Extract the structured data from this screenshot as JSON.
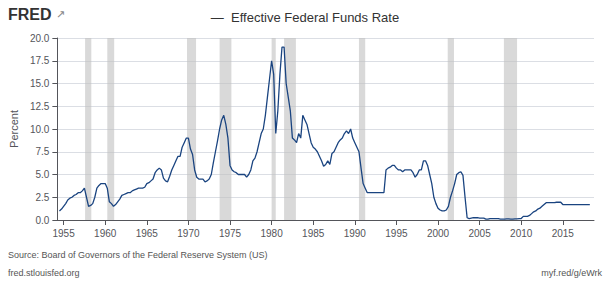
{
  "chart_data": {
    "type": "line",
    "title": "—  Effective Federal Funds Rate",
    "ylabel": "Percent",
    "annotations": [
      "FRED",
      "↗",
      "Source: Board of Governors of the Federal Reserve System (US)",
      "fred.stlouisfed.org",
      "myf.red/g/eWrk"
    ],
    "color": "#1a4480",
    "grid": true,
    "xlim": [
      1954.25,
      2018.75
    ],
    "xticks": [
      1955,
      1960,
      1965,
      1970,
      1975,
      1980,
      1985,
      1990,
      1995,
      2000,
      2005,
      2010,
      2015
    ],
    "ylim": [
      0.0,
      20.0
    ],
    "yticks": [
      {
        "value": 0.0,
        "label": "0.0"
      },
      2.5,
      {
        "value": 5.0,
        "label": "5.0"
      },
      7.5,
      {
        "value": 10.0,
        "label": "10.0"
      },
      12.5,
      {
        "value": 15.0,
        "label": "15.0"
      },
      17.5,
      {
        "value": 20.0,
        "label": "20.0"
      }
    ],
    "recession_bands": [
      [
        1957.58,
        1958.33
      ],
      [
        1960.25,
        1961.08
      ],
      [
        1969.83,
        1970.92
      ],
      [
        1973.75,
        1975.17
      ],
      [
        1980.0,
        1980.5
      ],
      [
        1981.5,
        1982.92
      ],
      [
        1990.5,
        1991.25
      ],
      [
        2001.17,
        2001.92
      ],
      [
        2007.92,
        2009.5
      ]
    ],
    "x": [
      1954.5,
      1954.75,
      1955.0,
      1955.25,
      1955.5,
      1955.75,
      1956.0,
      1956.25,
      1956.5,
      1956.75,
      1957.0,
      1957.25,
      1957.5,
      1957.75,
      1958.0,
      1958.25,
      1958.5,
      1958.75,
      1959.0,
      1959.25,
      1959.5,
      1959.75,
      1960.0,
      1960.25,
      1960.5,
      1960.75,
      1961.0,
      1961.25,
      1961.5,
      1961.75,
      1962.0,
      1962.25,
      1962.5,
      1962.75,
      1963.0,
      1963.25,
      1963.5,
      1963.75,
      1964.0,
      1964.25,
      1964.5,
      1964.75,
      1965.0,
      1965.25,
      1965.5,
      1965.75,
      1966.0,
      1966.25,
      1966.5,
      1966.75,
      1967.0,
      1967.25,
      1967.5,
      1967.75,
      1968.0,
      1968.25,
      1968.5,
      1968.75,
      1969.0,
      1969.25,
      1969.5,
      1969.75,
      1970.0,
      1970.25,
      1970.5,
      1970.75,
      1971.0,
      1971.25,
      1971.5,
      1971.75,
      1972.0,
      1972.25,
      1972.5,
      1972.75,
      1973.0,
      1973.25,
      1973.5,
      1973.75,
      1974.0,
      1974.25,
      1974.5,
      1974.75,
      1975.0,
      1975.25,
      1975.5,
      1975.75,
      1976.0,
      1976.25,
      1976.5,
      1976.75,
      1977.0,
      1977.25,
      1977.5,
      1977.75,
      1978.0,
      1978.25,
      1978.5,
      1978.75,
      1979.0,
      1979.25,
      1979.5,
      1979.75,
      1980.0,
      1980.25,
      1980.5,
      1980.75,
      1981.0,
      1981.25,
      1981.5,
      1981.75,
      1982.0,
      1982.25,
      1982.5,
      1982.75,
      1983.0,
      1983.25,
      1983.5,
      1983.75,
      1984.0,
      1984.25,
      1984.5,
      1984.75,
      1985.0,
      1985.25,
      1985.5,
      1985.75,
      1986.0,
      1986.25,
      1986.5,
      1986.75,
      1987.0,
      1987.25,
      1987.5,
      1987.75,
      1988.0,
      1988.25,
      1988.5,
      1988.75,
      1989.0,
      1989.25,
      1989.5,
      1989.75,
      1990.0,
      1990.25,
      1990.5,
      1990.75,
      1991.0,
      1991.25,
      1991.5,
      1991.75,
      1992.0,
      1992.25,
      1992.5,
      1992.75,
      1993.0,
      1993.25,
      1993.5,
      1993.75,
      1994.0,
      1994.25,
      1994.5,
      1994.75,
      1995.0,
      1995.25,
      1995.5,
      1995.75,
      1996.0,
      1996.25,
      1996.5,
      1996.75,
      1997.0,
      1997.25,
      1997.5,
      1997.75,
      1998.0,
      1998.25,
      1998.5,
      1998.75,
      1999.0,
      1999.25,
      1999.5,
      1999.75,
      2000.0,
      2000.25,
      2000.5,
      2000.75,
      2001.0,
      2001.25,
      2001.5,
      2001.75,
      2002.0,
      2002.25,
      2002.5,
      2002.75,
      2003.0,
      2003.25,
      2003.5,
      2003.75,
      2004.0,
      2004.25,
      2004.5,
      2004.75,
      2005.0,
      2005.25,
      2005.5,
      2005.75,
      2006.0,
      2006.25,
      2006.5,
      2006.75,
      2007.0,
      2007.25,
      2007.5,
      2007.75,
      2008.0,
      2008.25,
      2008.5,
      2008.75,
      2009.0,
      2009.25,
      2009.5,
      2009.75,
      2010.0,
      2010.25,
      2010.5,
      2010.75,
      2011.0,
      2011.25,
      2011.5,
      2011.75,
      2012.0,
      2012.25,
      2012.5,
      2012.75,
      2013.0,
      2013.25,
      2013.5,
      2013.75,
      2014.0,
      2014.25,
      2014.5,
      2014.75,
      2015.0,
      2015.25,
      2015.5,
      2015.75,
      2016.0,
      2016.25,
      2016.5,
      2016.75,
      2017.0,
      2017.25,
      2017.5,
      2017.75,
      2018.0,
      2018.25
    ],
    "values": [
      1.0,
      1.2,
      1.5,
      1.8,
      2.2,
      2.4,
      2.5,
      2.7,
      2.8,
      3.0,
      3.0,
      3.2,
      3.5,
      2.5,
      1.5,
      1.6,
      1.8,
      2.5,
      3.5,
      3.8,
      4.0,
      4.0,
      4.0,
      3.5,
      2.0,
      1.8,
      1.5,
      1.7,
      2.0,
      2.3,
      2.7,
      2.8,
      2.9,
      3.0,
      3.0,
      3.2,
      3.3,
      3.4,
      3.5,
      3.5,
      3.5,
      3.6,
      4.0,
      4.1,
      4.3,
      4.5,
      5.2,
      5.5,
      5.7,
      5.5,
      4.6,
      4.3,
      4.2,
      4.8,
      5.5,
      6.0,
      6.5,
      7.0,
      7.0,
      8.0,
      8.5,
      9.0,
      9.0,
      7.8,
      7.2,
      5.5,
      4.7,
      4.5,
      4.5,
      4.5,
      4.2,
      4.3,
      4.5,
      5.0,
      6.3,
      7.5,
      8.7,
      10.0,
      11.0,
      11.5,
      10.5,
      9.0,
      6.0,
      5.5,
      5.3,
      5.2,
      5.0,
      5.0,
      5.0,
      5.0,
      4.7,
      5.0,
      5.5,
      6.5,
      6.8,
      7.5,
      8.5,
      9.5,
      10.0,
      11.5,
      13.5,
      15.5,
      17.5,
      16.0,
      9.5,
      12.0,
      16.0,
      19.0,
      19.0,
      15.0,
      13.5,
      12.0,
      9.0,
      8.8,
      8.5,
      9.5,
      9.0,
      11.5,
      11.0,
      10.5,
      9.5,
      8.5,
      8.0,
      7.8,
      7.5,
      7.0,
      6.5,
      5.9,
      6.1,
      6.5,
      6.1,
      7.3,
      7.5,
      8.0,
      8.5,
      8.8,
      9.0,
      9.5,
      9.8,
      9.5,
      10.0,
      9.0,
      8.5,
      8.0,
      7.5,
      5.7,
      4.0,
      3.5,
      3.0,
      3.0,
      3.0,
      3.0,
      3.0,
      3.0,
      3.0,
      3.0,
      3.0,
      5.5,
      5.7,
      5.8,
      6.0,
      6.0,
      5.7,
      5.5,
      5.5,
      5.3,
      5.5,
      5.5,
      5.5,
      5.5,
      5.2,
      4.7,
      5.0,
      5.5,
      5.5,
      6.5,
      6.5,
      6.0,
      5.0,
      4.0,
      2.5,
      1.8,
      1.3,
      1.1,
      1.0,
      1.0,
      1.1,
      1.5,
      2.5,
      3.2,
      4.0,
      5.0,
      5.2,
      5.3,
      4.9,
      2.5,
      0.25,
      0.15,
      0.2,
      0.25,
      0.25,
      0.25,
      0.2,
      0.2,
      0.2,
      0.1,
      0.1,
      0.15,
      0.15,
      0.15,
      0.15,
      0.15,
      0.1,
      0.1,
      0.1,
      0.12,
      0.12,
      0.1,
      0.1,
      0.12,
      0.12,
      0.14,
      0.16,
      0.4,
      0.4,
      0.4,
      0.5,
      0.7,
      0.9,
      1.0,
      1.2,
      1.3,
      1.5,
      1.7,
      1.9,
      1.9,
      1.9,
      1.9,
      1.9,
      1.95,
      1.95,
      1.95,
      1.7,
      1.7,
      1.7,
      1.7,
      1.7,
      1.7,
      1.7,
      1.7,
      1.7,
      1.7,
      1.7,
      1.7,
      1.7,
      1.7
    ]
  }
}
